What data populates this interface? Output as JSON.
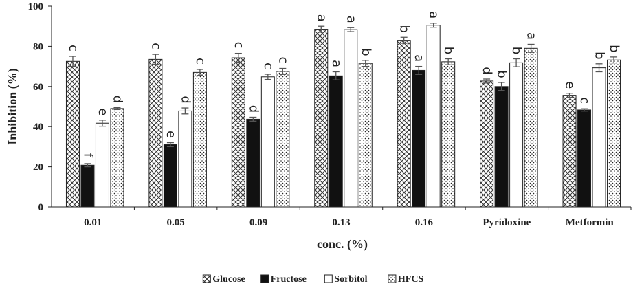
{
  "chart_data": {
    "type": "bar",
    "title": "",
    "xlabel": "conc. (%)",
    "ylabel": "Inhibition (%)",
    "ylim": [
      0,
      100
    ],
    "yticks": [
      0,
      20,
      40,
      60,
      80,
      100
    ],
    "grid": false,
    "legend_position": "bottom",
    "categories": [
      "0.01",
      "0.05",
      "0.09",
      "0.13",
      "0.16",
      "Pyridoxine",
      "Metformin"
    ],
    "series": [
      {
        "name": "Glucose",
        "pattern": "crosshatch",
        "values": [
          72.5,
          73.5,
          74.3,
          88.5,
          83.0,
          62.7,
          55.6
        ],
        "errors": [
          2.5,
          2.5,
          2.2,
          1.5,
          1.5,
          1.0,
          1.0
        ],
        "letters": [
          "c",
          "c",
          "c",
          "a",
          "b",
          "d",
          "e"
        ]
      },
      {
        "name": "Fructose",
        "pattern": "solid",
        "color": "#111111",
        "values": [
          20.8,
          31.0,
          43.7,
          65.3,
          68.0,
          60.0,
          48.3
        ],
        "errors": [
          0.8,
          1.0,
          1.0,
          2.0,
          2.0,
          2.0,
          0.6
        ],
        "letters": [
          "f",
          "e",
          "d",
          "a",
          "a",
          "b",
          "c"
        ]
      },
      {
        "name": "Sorbitol",
        "pattern": "open",
        "values": [
          41.7,
          47.8,
          64.8,
          88.3,
          90.5,
          71.8,
          69.3
        ],
        "errors": [
          1.5,
          1.5,
          1.3,
          1.0,
          1.0,
          2.0,
          2.0
        ],
        "letters": [
          "e",
          "d",
          "c",
          "a",
          "a",
          "b",
          "b"
        ]
      },
      {
        "name": "HFCS",
        "pattern": "dotted",
        "values": [
          49.0,
          67.0,
          67.5,
          71.5,
          72.3,
          79.0,
          73.2
        ],
        "errors": [
          0.5,
          1.5,
          1.5,
          1.5,
          1.5,
          2.0,
          1.5
        ],
        "letters": [
          "d",
          "c",
          "c",
          "b",
          "b",
          "a",
          "b"
        ]
      }
    ]
  }
}
